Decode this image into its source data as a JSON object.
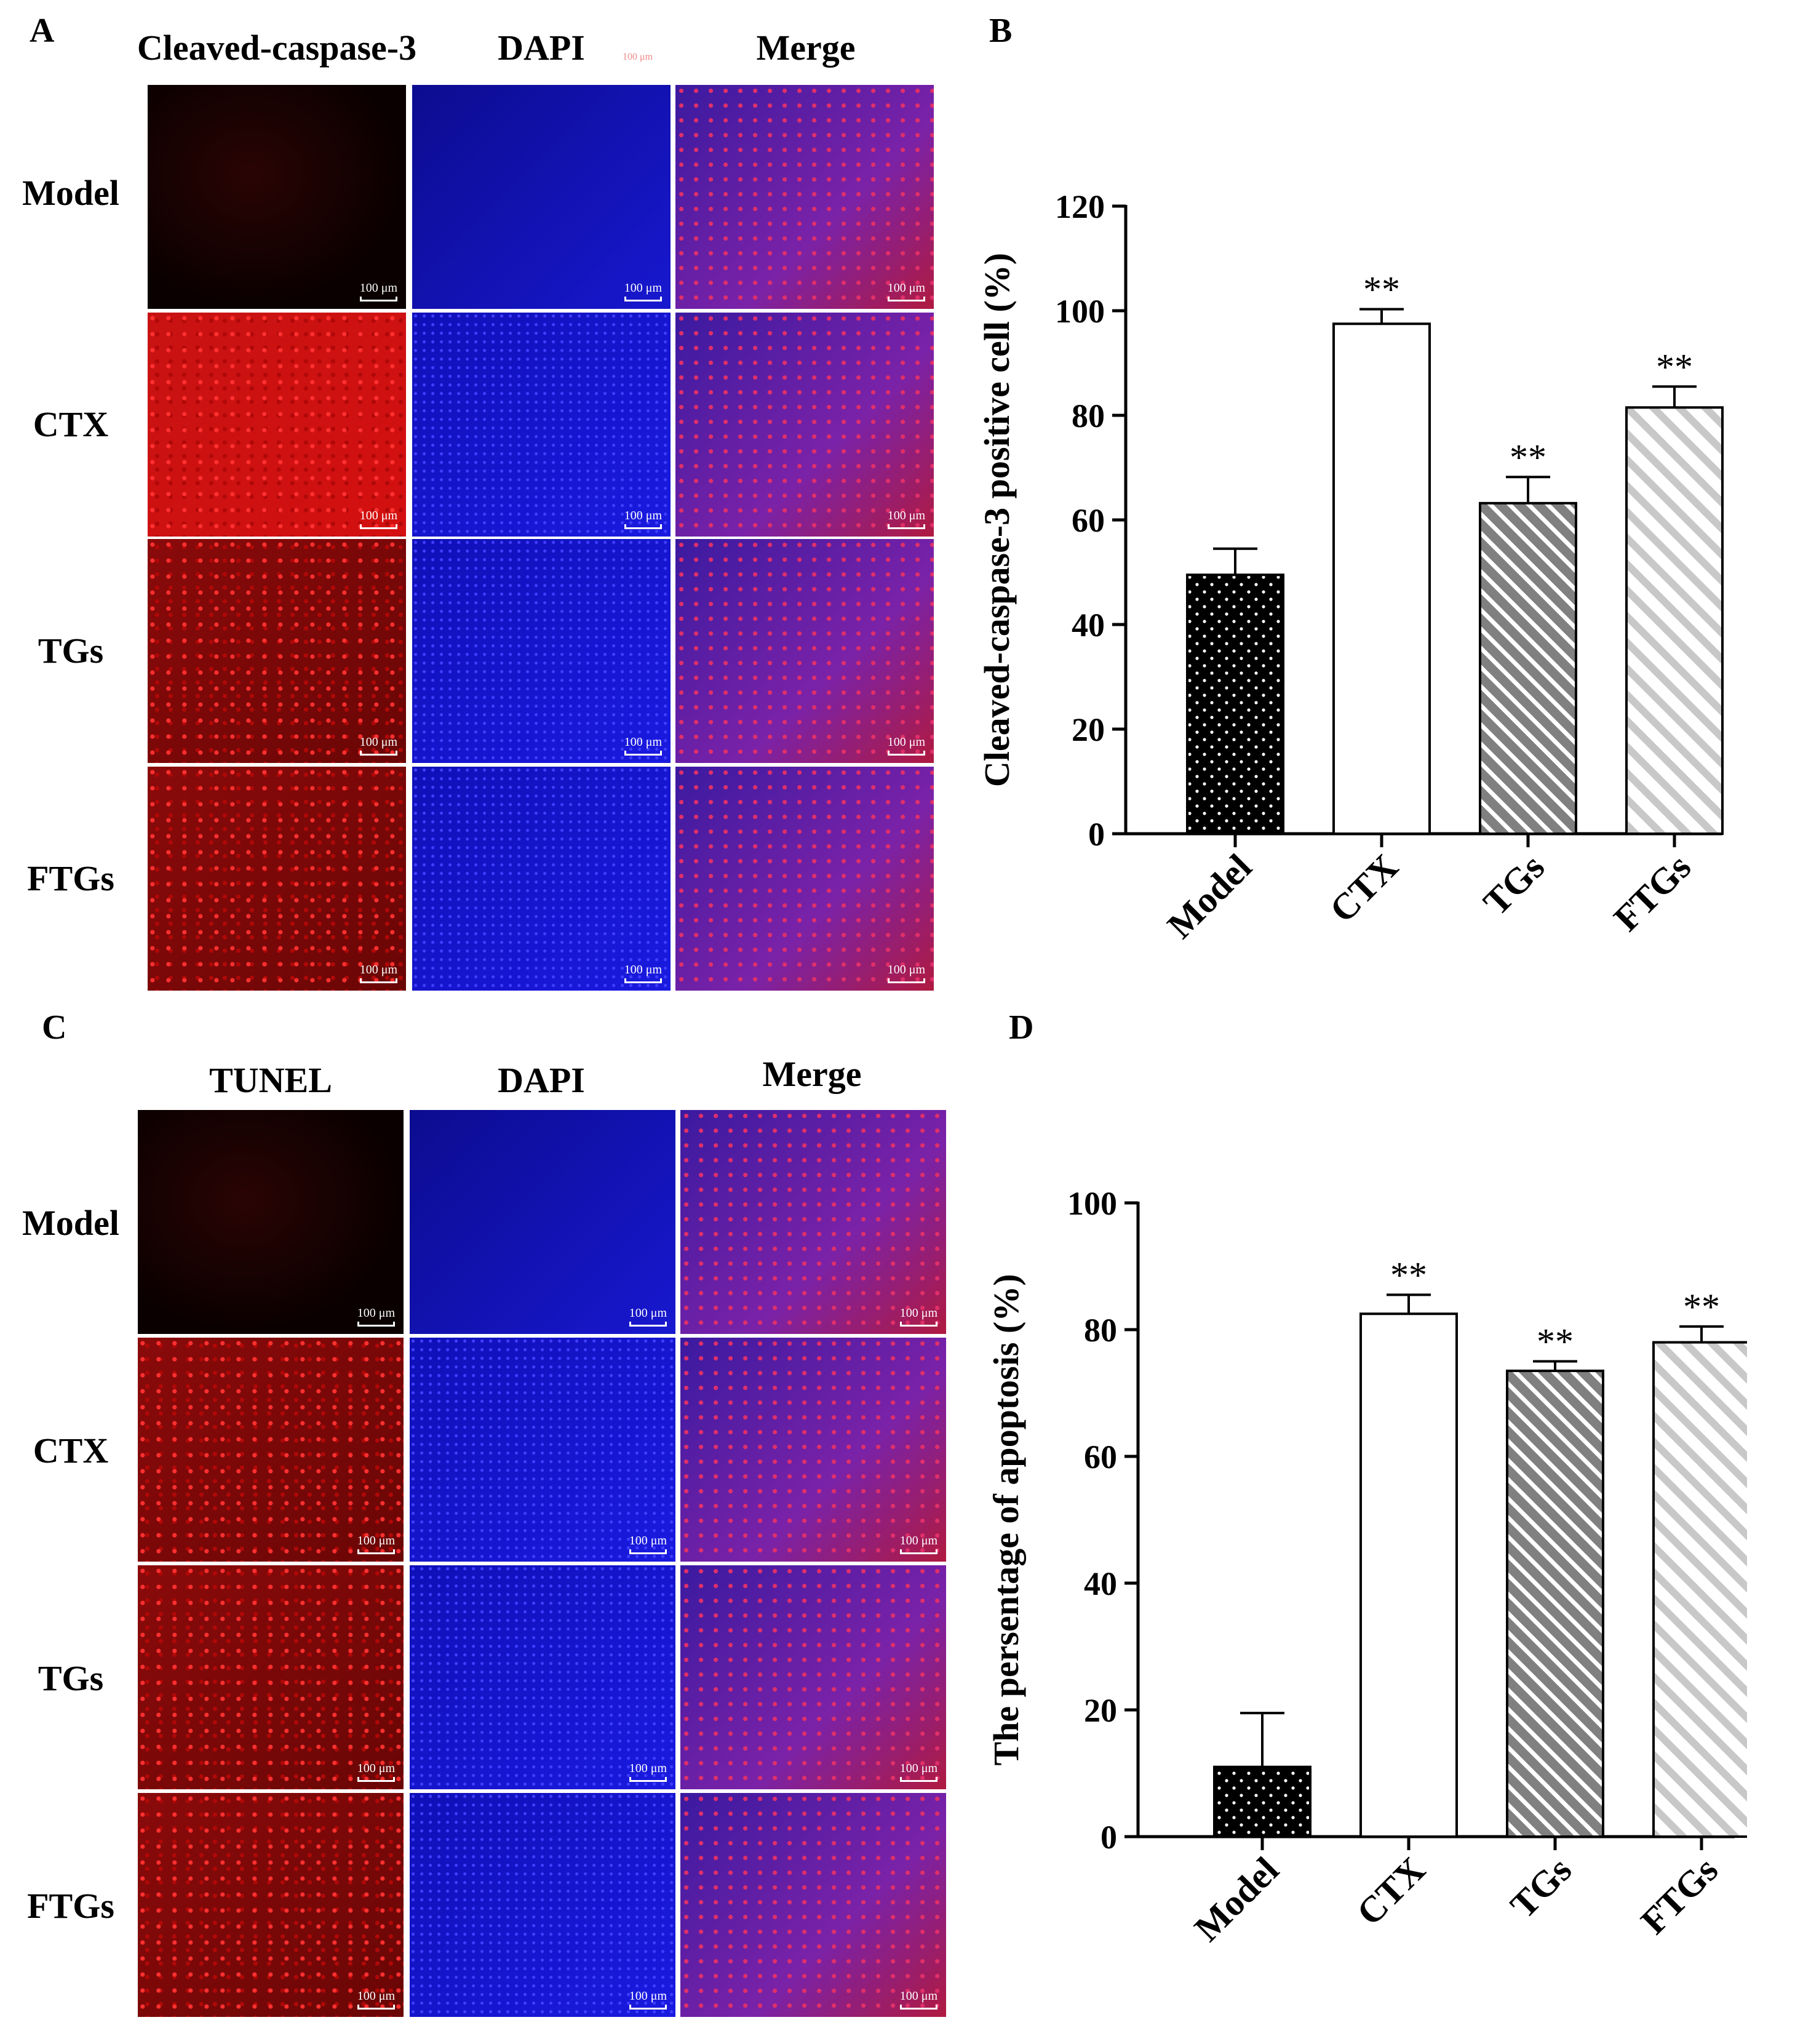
{
  "panels": {
    "A": {
      "letter": "A",
      "columns": [
        "Cleaved-caspase-3",
        "DAPI",
        "Merge"
      ],
      "rows": [
        "Model",
        "CTX",
        "TGs",
        "FTGs"
      ],
      "scale_label": "100 μm",
      "stray_label": "100 μm"
    },
    "B": {
      "letter": "B"
    },
    "C": {
      "letter": "C",
      "columns": [
        "TUNEL",
        "DAPI",
        "Merge"
      ],
      "rows": [
        "Model",
        "CTX",
        "TGs",
        "FTGs"
      ],
      "scale_label": "100 μm"
    },
    "D": {
      "letter": "D"
    }
  },
  "colors": {
    "red_channel": "#d41010",
    "blue_channel": "#1a1ae0",
    "merge": "#7a22a8"
  },
  "chart_data": [
    {
      "panel": "B",
      "type": "bar",
      "categories": [
        "Model",
        "CTX",
        "TGs",
        "FTGs"
      ],
      "values": [
        49.5,
        97.5,
        63.2,
        81.5
      ],
      "errors": [
        5.0,
        2.8,
        5.0,
        4.0
      ],
      "significance": [
        "",
        "**",
        "**",
        "**"
      ],
      "patterns": [
        "dots-black",
        "white",
        "hatch-dark",
        "hatch-light"
      ],
      "ylabel": "Cleaved-caspase-3 positive cell (%)",
      "ylim": [
        0,
        120
      ],
      "yticks": [
        0,
        20,
        40,
        60,
        80,
        100,
        120
      ]
    },
    {
      "panel": "D",
      "type": "bar",
      "categories": [
        "Model",
        "CTX",
        "TGs",
        "FTGs"
      ],
      "values": [
        11.0,
        82.5,
        73.5,
        78.0
      ],
      "errors": [
        8.5,
        3.0,
        1.5,
        2.5
      ],
      "significance": [
        "",
        "**",
        "**",
        "**"
      ],
      "patterns": [
        "dots-black",
        "white",
        "hatch-dark",
        "hatch-light"
      ],
      "ylabel": "The  persentage of apoptosis  (%)",
      "ylim": [
        0,
        100
      ],
      "yticks": [
        0,
        20,
        40,
        60,
        80,
        100
      ]
    }
  ]
}
